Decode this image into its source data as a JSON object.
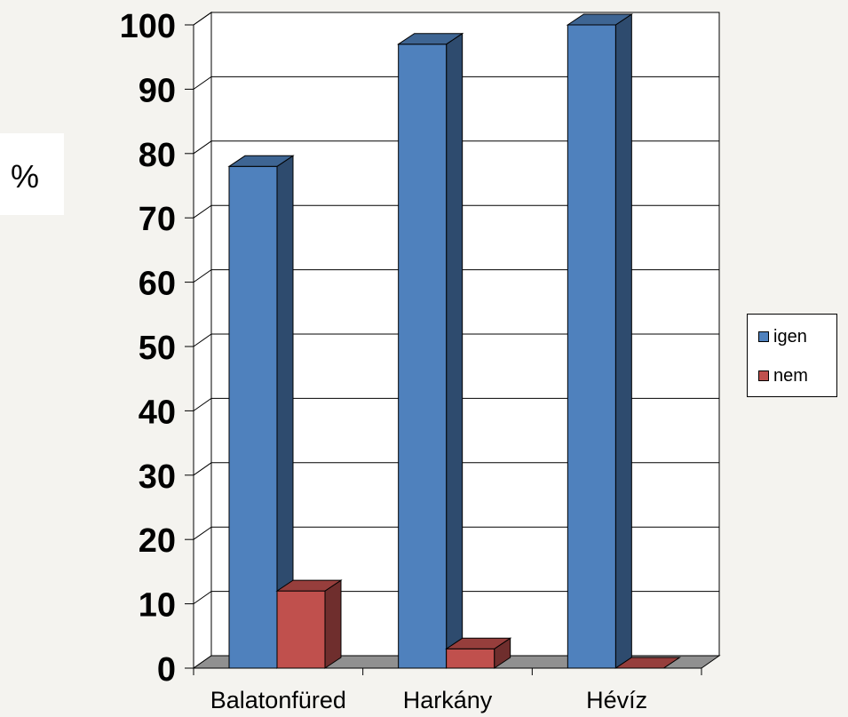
{
  "chart_data": {
    "type": "bar",
    "categories": [
      "Balatonfüred",
      "Harkány",
      "Hévíz"
    ],
    "series": [
      {
        "name": "igen",
        "values": [
          78,
          97,
          100
        ],
        "color": "#4f81bd"
      },
      {
        "name": "nem",
        "values": [
          12,
          3,
          0
        ],
        "color": "#c0504d"
      }
    ],
    "ylabel": "%",
    "ylim": [
      0,
      100
    ],
    "yticks": [
      "0",
      "10",
      "20",
      "30",
      "40",
      "50",
      "60",
      "70",
      "80",
      "90",
      "100"
    ],
    "grid": true,
    "legend": "right",
    "style": "3d-column"
  }
}
